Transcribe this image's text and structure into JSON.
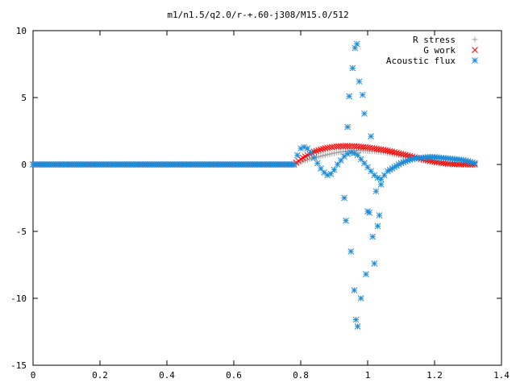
{
  "chart_data": {
    "type": "scatter",
    "title": "m1/n1.5/q2.0/r-+.60-j308/M15.0/512",
    "xlabel": "",
    "ylabel": "",
    "xlim": [
      0,
      1.4
    ],
    "ylim": [
      -15,
      10
    ],
    "xticks": [
      "0",
      "0.2",
      "0.4",
      "0.6",
      "0.8",
      "1",
      "1.2",
      "1.4"
    ],
    "yticks": [
      "10",
      "5",
      "0",
      "-5",
      "-10",
      "-15"
    ],
    "grid": false,
    "legend_position": "top-right",
    "series": [
      {
        "name": "R stress",
        "marker": "plus",
        "color": "#a0a0a0",
        "x": [
          0.0,
          0.78,
          0.8,
          0.82,
          0.84,
          0.86,
          0.88,
          0.9,
          0.92,
          0.94,
          0.96,
          0.98,
          1.0,
          1.02,
          1.04,
          1.06,
          1.08,
          1.1,
          1.12,
          1.14,
          1.16,
          1.18,
          1.2,
          1.22,
          1.24,
          1.26,
          1.28,
          1.3,
          1.32
        ],
        "y": [
          0.0,
          0.0,
          0.2,
          0.35,
          0.5,
          0.62,
          0.74,
          0.85,
          0.94,
          1.0,
          1.03,
          1.04,
          1.02,
          0.98,
          0.92,
          0.85,
          0.76,
          0.66,
          0.55,
          0.44,
          0.34,
          0.25,
          0.17,
          0.11,
          0.06,
          0.03,
          0.01,
          0.0,
          0.0
        ]
      },
      {
        "name": "G work",
        "marker": "cross",
        "color": "#ff0000",
        "x": [
          0.0,
          0.78,
          0.8,
          0.82,
          0.84,
          0.86,
          0.88,
          0.9,
          0.92,
          0.94,
          0.96,
          0.98,
          1.0,
          1.02,
          1.04,
          1.06,
          1.08,
          1.1,
          1.12,
          1.14,
          1.16,
          1.18,
          1.2,
          1.22,
          1.24,
          1.26,
          1.28,
          1.3,
          1.32
        ],
        "y": [
          0.0,
          0.0,
          0.4,
          0.7,
          0.95,
          1.12,
          1.25,
          1.33,
          1.37,
          1.38,
          1.36,
          1.32,
          1.27,
          1.2,
          1.12,
          1.03,
          0.92,
          0.8,
          0.67,
          0.54,
          0.42,
          0.3,
          0.2,
          0.12,
          0.06,
          0.03,
          0.01,
          0.0,
          0.0
        ]
      },
      {
        "name": "Acoustic flux",
        "marker": "star",
        "color": "#1e8bd6",
        "x": [
          0.0,
          0.78,
          0.79,
          0.8,
          0.81,
          0.82,
          0.83,
          0.84,
          0.85,
          0.86,
          0.87,
          0.88,
          0.89,
          0.9,
          0.91,
          0.92,
          0.93,
          0.94,
          0.95,
          0.96,
          0.97,
          0.98,
          0.99,
          1.0,
          1.01,
          1.02,
          1.03,
          1.04,
          1.05,
          1.06,
          1.08,
          1.1,
          1.12,
          1.14,
          1.16,
          1.18,
          1.2,
          1.22,
          1.24,
          1.26,
          1.28,
          1.3,
          1.32,
          0.93,
          0.935,
          0.94,
          0.945,
          0.95,
          0.955,
          0.96,
          0.962,
          0.965,
          0.968,
          0.97,
          0.975,
          0.98,
          0.985,
          0.99,
          0.995,
          1.0,
          1.005,
          1.01,
          1.015,
          1.02,
          1.025,
          1.03,
          1.035,
          1.04
        ],
        "y": [
          0.0,
          0.0,
          0.7,
          1.2,
          1.3,
          1.2,
          0.9,
          0.5,
          0.1,
          -0.3,
          -0.6,
          -0.8,
          -0.7,
          -0.4,
          0.0,
          0.3,
          0.6,
          0.8,
          0.9,
          0.85,
          0.7,
          0.4,
          0.1,
          -0.2,
          -0.5,
          -0.8,
          -1.0,
          -1.1,
          -0.8,
          -0.5,
          -0.2,
          0.1,
          0.3,
          0.45,
          0.5,
          0.55,
          0.55,
          0.5,
          0.45,
          0.4,
          0.35,
          0.25,
          0.1,
          -2.5,
          -4.2,
          2.8,
          5.1,
          -6.5,
          7.2,
          -9.4,
          8.7,
          -11.6,
          9.0,
          -12.1,
          6.2,
          -10.0,
          5.2,
          3.8,
          -8.2,
          -3.5,
          -3.6,
          2.1,
          -5.4,
          -7.4,
          -2.0,
          -4.6,
          -3.8,
          -1.5
        ]
      }
    ]
  }
}
